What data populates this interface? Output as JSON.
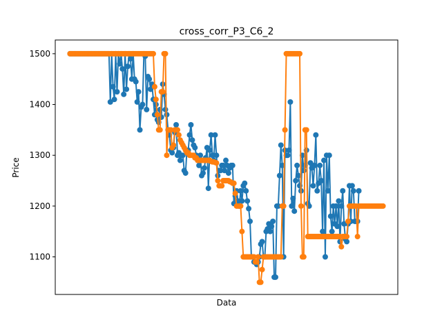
{
  "chart_data": {
    "type": "line",
    "title": "cross_corr_P3_C6_2",
    "xlabel": "Data",
    "ylabel": "Price",
    "ylim": [
      1026,
      1527
    ],
    "xlim": [
      -11,
      244
    ],
    "x_ticks_visible": false,
    "yticks": [
      1100,
      1200,
      1300,
      1400,
      1500
    ],
    "ytick_labels": [
      "1100",
      "1200",
      "1300",
      "1400",
      "1500"
    ],
    "grid": false,
    "markers": true,
    "series": [
      {
        "color": "#1f77b4",
        "values": [
          1500,
          1500,
          1500,
          1500,
          1500,
          1500,
          1500,
          1500,
          1500,
          1500,
          1500,
          1500,
          1500,
          1500,
          1500,
          1500,
          1500,
          1500,
          1500,
          1500,
          1500,
          1500,
          1500,
          1500,
          1500,
          1500,
          1500,
          1500,
          1500,
          1500,
          1405,
          1500,
          1435,
          1410,
          1500,
          1425,
          1500,
          1480,
          1500,
          1470,
          1420,
          1500,
          1430,
          1475,
          1500,
          1490,
          1450,
          1500,
          1450,
          1445,
          1405,
          1425,
          1350,
          1395,
          1400,
          1500,
          1495,
          1390,
          1455,
          1450,
          1430,
          1440,
          1410,
          1380,
          1400,
          1370,
          1365,
          1390,
          1375,
          1440,
          1420,
          1390,
          1380,
          1350,
          1340,
          1310,
          1305,
          1315,
          1345,
          1360,
          1300,
          1305,
          1290,
          1300,
          1300,
          1270,
          1265,
          1310,
          1310,
          1340,
          1360,
          1330,
          1320,
          1315,
          1300,
          1290,
          1280,
          1300,
          1260,
          1265,
          1275,
          1295,
          1315,
          1235,
          1310,
          1340,
          1300,
          1290,
          1340,
          1300,
          1260,
          1270,
          1270,
          1280,
          1280,
          1270,
          1290,
          1280,
          1265,
          1275,
          1280,
          1280,
          1205,
          1220,
          1230,
          1210,
          1200,
          1230,
          1210,
          1240,
          1245,
          1230,
          1210,
          1195,
          1170,
          1100,
          1100,
          1090,
          1090,
          1085,
          1090,
          1100,
          1125,
          1130,
          1100,
          1100,
          1150,
          1155,
          1165,
          1150,
          1160,
          1170,
          1060,
          1060,
          1200,
          1200,
          1260,
          1320,
          1280,
          1100,
          1310,
          1300,
          1300,
          1310,
          1405,
          1200,
          1215,
          1190,
          1250,
          1280,
          1260,
          1240,
          1230,
          1300,
          1270,
          1280,
          1310,
          1205,
          1200,
          1285,
          1275,
          1240,
          1280,
          1340,
          1230,
          1245,
          1280,
          1250,
          1150,
          1290,
          1100,
          1300,
          1230,
          1300,
          1180,
          1150,
          1200,
          1165,
          1200,
          1160,
          1210,
          1130,
          1200,
          1230,
          1165,
          1135,
          1130,
          1165,
          1240,
          1170,
          1240,
          1230,
          1170,
          1170,
          1170,
          1230
        ]
      },
      {
        "color": "#ff7f0e",
        "values": [
          1500,
          1500,
          1500,
          1500,
          1500,
          1500,
          1500,
          1500,
          1500,
          1500,
          1500,
          1500,
          1500,
          1500,
          1500,
          1500,
          1500,
          1500,
          1500,
          1500,
          1500,
          1500,
          1500,
          1500,
          1500,
          1500,
          1500,
          1500,
          1500,
          1500,
          1500,
          1500,
          1500,
          1500,
          1500,
          1500,
          1500,
          1500,
          1500,
          1500,
          1500,
          1500,
          1500,
          1500,
          1500,
          1500,
          1500,
          1500,
          1500,
          1500,
          1500,
          1500,
          1500,
          1500,
          1500,
          1500,
          1500,
          1500,
          1500,
          1500,
          1500,
          1500,
          1500,
          1435,
          1410,
          1380,
          1350,
          1350,
          1425,
          1425,
          1500,
          1500,
          1300,
          1350,
          1350,
          1350,
          1315,
          1320,
          1350,
          1350,
          1350,
          1340,
          1330,
          1325,
          1320,
          1315,
          1310,
          1305,
          1305,
          1300,
          1300,
          1300,
          1300,
          1295,
          1295,
          1290,
          1290,
          1290,
          1290,
          1290,
          1290,
          1290,
          1290,
          1290,
          1290,
          1288,
          1287,
          1287,
          1286,
          1285,
          1250,
          1240,
          1240,
          1240,
          1250,
          1250,
          1250,
          1250,
          1250,
          1248,
          1247,
          1245,
          1245,
          1225,
          1200,
          1200,
          1200,
          1200,
          1150,
          1100,
          1100,
          1100,
          1100,
          1100,
          1100,
          1100,
          1100,
          1100,
          1090,
          1090,
          1100,
          1050,
          1050,
          1075,
          1100,
          1100,
          1100,
          1100,
          1100,
          1100,
          1100,
          1100,
          1100,
          1100,
          1100,
          1100,
          1100,
          1100,
          1200,
          1200,
          1350,
          1500,
          1500,
          1500,
          1500,
          1500,
          1500,
          1500,
          1500,
          1500,
          1500,
          1500,
          1200,
          1100,
          1100,
          1350,
          1350,
          1140,
          1140,
          1140,
          1140,
          1140,
          1140,
          1140,
          1140,
          1140,
          1140,
          1140,
          1140,
          1140,
          1140,
          1140,
          1140,
          1140,
          1140,
          1140,
          1140,
          1140,
          1140,
          1140,
          1140,
          1140,
          1120,
          1140,
          1140,
          1140,
          1140,
          1170,
          1200,
          1200,
          1200,
          1200,
          1200,
          1200,
          1140,
          1200,
          1200,
          1200,
          1200,
          1200,
          1200,
          1200,
          1200,
          1200,
          1200,
          1200,
          1200,
          1200,
          1200,
          1200,
          1200,
          1200,
          1200,
          1200
        ]
      }
    ]
  }
}
